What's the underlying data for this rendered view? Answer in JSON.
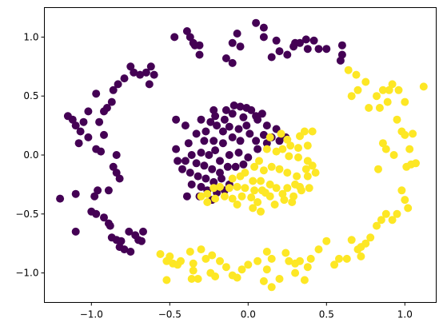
{
  "chart_data": {
    "type": "scatter",
    "title": "",
    "xlabel": "",
    "ylabel": "",
    "xlim": [
      -1.3,
      1.2
    ],
    "ylim": [
      -1.25,
      1.25
    ],
    "grid": false,
    "x_ticks": [
      -1.0,
      -0.5,
      0.0,
      0.5,
      1.0
    ],
    "x_tick_labels": [
      "−1.0",
      "−0.5",
      "0.0",
      "0.5",
      "1.0"
    ],
    "y_ticks": [
      -1.0,
      -0.5,
      0.0,
      0.5,
      1.0
    ],
    "y_tick_labels": [
      "−1.0",
      "−0.5",
      "0.0",
      "0.5",
      "1.0"
    ],
    "series": [
      {
        "color": "#440154",
        "points": [
          [
            0.05,
            1.12
          ],
          [
            0.1,
            1.08
          ],
          [
            -0.07,
            1.03
          ],
          [
            -0.39,
            1.05
          ],
          [
            -0.47,
            1.0
          ],
          [
            -0.37,
            1.0
          ],
          [
            -0.35,
            0.95
          ],
          [
            -0.31,
            0.93
          ],
          [
            -0.05,
            0.92
          ],
          [
            0.1,
            1.0
          ],
          [
            0.18,
            0.97
          ],
          [
            0.3,
            0.95
          ],
          [
            0.37,
            0.98
          ],
          [
            0.42,
            0.97
          ],
          [
            0.45,
            0.9
          ],
          [
            -0.1,
            0.95
          ],
          [
            -0.34,
            0.93
          ],
          [
            -0.31,
            0.85
          ],
          [
            -0.14,
            0.82
          ],
          [
            -0.1,
            0.78
          ],
          [
            0.15,
            0.83
          ],
          [
            0.2,
            0.88
          ],
          [
            0.25,
            0.85
          ],
          [
            0.29,
            0.92
          ],
          [
            0.33,
            0.95
          ],
          [
            0.38,
            0.9
          ],
          [
            0.5,
            0.9
          ],
          [
            0.6,
            0.93
          ],
          [
            0.6,
            0.85
          ],
          [
            0.59,
            0.8
          ],
          [
            -0.62,
            0.75
          ],
          [
            -0.6,
            0.68
          ],
          [
            -0.63,
            0.6
          ],
          [
            -0.65,
            0.7
          ],
          [
            -0.69,
            0.68
          ],
          [
            -0.73,
            0.7
          ],
          [
            -0.75,
            0.75
          ],
          [
            -0.79,
            0.65
          ],
          [
            -0.83,
            0.6
          ],
          [
            -0.86,
            0.55
          ],
          [
            -0.97,
            0.52
          ],
          [
            -0.87,
            0.45
          ],
          [
            -0.9,
            0.4
          ],
          [
            -0.92,
            0.37
          ],
          [
            -0.95,
            0.28
          ],
          [
            -1.02,
            0.37
          ],
          [
            -1.05,
            0.28
          ],
          [
            -1.1,
            0.25
          ],
          [
            -1.12,
            0.3
          ],
          [
            -1.15,
            0.33
          ],
          [
            -1.07,
            0.2
          ],
          [
            -1.08,
            0.1
          ],
          [
            -1.02,
            0.15
          ],
          [
            -0.92,
            0.17
          ],
          [
            -0.94,
            0.03
          ],
          [
            -0.97,
            0.05
          ],
          [
            -0.84,
            0.0
          ],
          [
            -0.86,
            -0.1
          ],
          [
            -0.84,
            -0.15
          ],
          [
            -0.82,
            -0.2
          ],
          [
            -0.89,
            -0.3
          ],
          [
            -0.96,
            -0.3
          ],
          [
            -0.98,
            -0.35
          ],
          [
            -1.1,
            -0.33
          ],
          [
            -1.2,
            -0.37
          ],
          [
            -1.0,
            -0.48
          ],
          [
            -0.97,
            -0.5
          ],
          [
            -0.92,
            -0.53
          ],
          [
            -0.89,
            -0.58
          ],
          [
            -0.88,
            -0.6
          ],
          [
            -0.87,
            -0.7
          ],
          [
            -0.84,
            -0.72
          ],
          [
            -0.82,
            -0.78
          ],
          [
            -0.79,
            -0.8
          ],
          [
            -0.75,
            -0.82
          ],
          [
            -0.72,
            -0.68
          ],
          [
            -0.7,
            -0.72
          ],
          [
            -0.68,
            -0.73
          ],
          [
            -0.67,
            -0.65
          ],
          [
            -0.76,
            -0.65
          ],
          [
            -0.81,
            -0.73
          ],
          [
            -1.1,
            -0.65
          ],
          [
            -0.22,
            0.38
          ],
          [
            -0.14,
            0.38
          ],
          [
            -0.09,
            0.42
          ],
          [
            -0.05,
            0.41
          ],
          [
            -0.01,
            0.4
          ],
          [
            0.02,
            0.38
          ],
          [
            -0.21,
            0.33
          ],
          [
            -0.15,
            0.3
          ],
          [
            -0.1,
            0.35
          ],
          [
            -0.03,
            0.32
          ],
          [
            0.05,
            0.33
          ],
          [
            0.09,
            0.35
          ],
          [
            -0.3,
            0.3
          ],
          [
            -0.27,
            0.2
          ],
          [
            -0.24,
            0.28
          ],
          [
            -0.2,
            0.25
          ],
          [
            -0.16,
            0.2
          ],
          [
            -0.12,
            0.24
          ],
          [
            -0.06,
            0.22
          ],
          [
            -0.01,
            0.25
          ],
          [
            0.06,
            0.3
          ],
          [
            0.12,
            0.25
          ],
          [
            0.18,
            0.22
          ],
          [
            -0.46,
            0.3
          ],
          [
            -0.4,
            0.25
          ],
          [
            -0.33,
            0.18
          ],
          [
            -0.28,
            0.12
          ],
          [
            -0.22,
            0.12
          ],
          [
            -0.16,
            0.1
          ],
          [
            -0.1,
            0.15
          ],
          [
            -0.05,
            0.12
          ],
          [
            0.01,
            0.18
          ],
          [
            0.05,
            0.12
          ],
          [
            0.1,
            0.17
          ],
          [
            0.15,
            0.15
          ],
          [
            0.2,
            0.12
          ],
          [
            0.24,
            0.15
          ],
          [
            -0.38,
            0.1
          ],
          [
            -0.3,
            0.02
          ],
          [
            -0.25,
            0.0
          ],
          [
            -0.21,
            0.04
          ],
          [
            -0.18,
            -0.05
          ],
          [
            -0.12,
            0.0
          ],
          [
            -0.06,
            0.02
          ],
          [
            0.0,
            -0.02
          ],
          [
            0.06,
            0.05
          ],
          [
            0.12,
            0.1
          ],
          [
            -0.46,
            0.05
          ],
          [
            -0.45,
            -0.05
          ],
          [
            -0.4,
            -0.05
          ],
          [
            -0.36,
            0.0
          ],
          [
            -0.33,
            -0.07
          ],
          [
            -0.28,
            -0.09
          ],
          [
            -0.23,
            -0.12
          ],
          [
            -0.18,
            -0.15
          ],
          [
            -0.13,
            -0.1
          ],
          [
            -0.08,
            -0.1
          ],
          [
            -0.03,
            -0.08
          ],
          [
            -0.42,
            -0.12
          ],
          [
            -0.37,
            -0.15
          ],
          [
            -0.32,
            -0.18
          ],
          [
            -0.27,
            -0.2
          ],
          [
            -0.22,
            -0.23
          ],
          [
            -0.17,
            -0.2
          ],
          [
            -0.12,
            -0.25
          ],
          [
            -0.36,
            -0.25
          ],
          [
            -0.3,
            -0.27
          ],
          [
            -0.26,
            -0.3
          ],
          [
            -0.2,
            -0.32
          ],
          [
            -0.15,
            -0.3
          ],
          [
            -0.39,
            -0.35
          ],
          [
            -0.31,
            -0.35
          ],
          [
            -0.23,
            -0.38
          ]
        ]
      },
      {
        "color": "#fde725",
        "points": [
          [
            0.64,
            0.72
          ],
          [
            0.69,
            0.68
          ],
          [
            0.75,
            0.62
          ],
          [
            0.7,
            0.55
          ],
          [
            0.66,
            0.5
          ],
          [
            0.82,
            0.5
          ],
          [
            0.86,
            0.55
          ],
          [
            0.9,
            0.55
          ],
          [
            0.92,
            0.6
          ],
          [
            0.96,
            0.55
          ],
          [
            0.89,
            0.45
          ],
          [
            0.77,
            0.4
          ],
          [
            0.84,
            0.4
          ],
          [
            1.12,
            0.58
          ],
          [
            1.0,
            0.45
          ],
          [
            0.95,
            0.3
          ],
          [
            0.98,
            0.2
          ],
          [
            1.0,
            0.17
          ],
          [
            0.86,
            0.1
          ],
          [
            0.88,
            0.05
          ],
          [
            0.93,
            0.0
          ],
          [
            1.05,
            0.18
          ],
          [
            1.03,
            0.05
          ],
          [
            1.01,
            -0.1
          ],
          [
            1.04,
            -0.08
          ],
          [
            1.07,
            -0.07
          ],
          [
            0.83,
            -0.12
          ],
          [
            0.98,
            -0.3
          ],
          [
            1.0,
            -0.38
          ],
          [
            1.02,
            -0.45
          ],
          [
            0.95,
            -0.5
          ],
          [
            0.88,
            -0.5
          ],
          [
            0.85,
            -0.55
          ],
          [
            0.92,
            -0.55
          ],
          [
            0.82,
            -0.6
          ],
          [
            0.78,
            -0.7
          ],
          [
            0.75,
            -0.75
          ],
          [
            0.72,
            -0.78
          ],
          [
            0.7,
            -0.8
          ],
          [
            0.66,
            -0.72
          ],
          [
            0.72,
            -0.86
          ],
          [
            0.63,
            -0.88
          ],
          [
            0.55,
            -0.93
          ],
          [
            0.58,
            -0.88
          ],
          [
            0.5,
            -0.73
          ],
          [
            0.45,
            -0.8
          ],
          [
            0.4,
            -0.88
          ],
          [
            0.38,
            -0.95
          ],
          [
            0.33,
            -0.9
          ],
          [
            0.3,
            -0.92
          ],
          [
            0.26,
            -0.9
          ],
          [
            0.24,
            -0.83
          ],
          [
            0.15,
            -0.88
          ],
          [
            0.12,
            -0.82
          ],
          [
            0.06,
            -0.9
          ],
          [
            0.0,
            -0.93
          ],
          [
            -0.04,
            -0.97
          ],
          [
            0.12,
            -0.97
          ],
          [
            0.3,
            -1.0
          ],
          [
            0.36,
            -1.06
          ],
          [
            0.2,
            -1.05
          ],
          [
            0.15,
            -1.12
          ],
          [
            0.1,
            -1.07
          ],
          [
            -0.07,
            -1.04
          ],
          [
            -0.1,
            -1.02
          ],
          [
            -0.23,
            -0.85
          ],
          [
            -0.27,
            -0.88
          ],
          [
            -0.35,
            -0.92
          ],
          [
            -0.35,
            -0.98
          ],
          [
            -0.36,
            -1.05
          ],
          [
            -0.52,
            -1.06
          ],
          [
            -0.48,
            -0.92
          ],
          [
            -0.43,
            -0.9
          ],
          [
            -0.45,
            -0.93
          ],
          [
            -0.37,
            -0.82
          ],
          [
            -0.3,
            -0.8
          ],
          [
            -0.24,
            -1.0
          ],
          [
            -0.14,
            -0.95
          ],
          [
            -0.21,
            -1.03
          ],
          [
            -0.32,
            -1.05
          ],
          [
            -0.5,
            -0.86
          ],
          [
            -0.52,
            -0.9
          ],
          [
            -0.56,
            -0.84
          ],
          [
            -0.18,
            -0.9
          ],
          [
            0.14,
            0.15
          ],
          [
            0.21,
            0.18
          ],
          [
            0.25,
            0.13
          ],
          [
            0.33,
            0.16
          ],
          [
            0.36,
            0.2
          ],
          [
            0.41,
            0.2
          ],
          [
            0.38,
            0.08
          ],
          [
            0.32,
            0.06
          ],
          [
            0.27,
            0.08
          ],
          [
            0.22,
            0.05
          ],
          [
            0.18,
            0.03
          ],
          [
            0.12,
            0.05
          ],
          [
            0.26,
            -0.01
          ],
          [
            0.32,
            -0.02
          ],
          [
            0.38,
            -0.05
          ],
          [
            0.41,
            -0.09
          ],
          [
            0.37,
            -0.12
          ],
          [
            0.43,
            -0.15
          ],
          [
            0.38,
            -0.18
          ],
          [
            0.31,
            -0.18
          ],
          [
            0.25,
            -0.15
          ],
          [
            0.2,
            -0.12
          ],
          [
            0.15,
            -0.1
          ],
          [
            0.1,
            -0.13
          ],
          [
            0.07,
            -0.05
          ],
          [
            0.04,
            -0.1
          ],
          [
            -0.02,
            -0.15
          ],
          [
            -0.05,
            -0.18
          ],
          [
            -0.1,
            -0.2
          ],
          [
            0.03,
            -0.22
          ],
          [
            0.08,
            -0.22
          ],
          [
            0.14,
            -0.25
          ],
          [
            0.18,
            -0.28
          ],
          [
            0.25,
            -0.28
          ],
          [
            0.3,
            -0.25
          ],
          [
            0.34,
            -0.3
          ],
          [
            0.39,
            -0.28
          ],
          [
            0.22,
            -0.33
          ],
          [
            0.14,
            -0.35
          ],
          [
            0.09,
            -0.3
          ],
          [
            0.04,
            -0.3
          ],
          [
            -0.02,
            -0.28
          ],
          [
            -0.07,
            -0.27
          ],
          [
            -0.12,
            -0.28
          ],
          [
            -0.18,
            -0.27
          ],
          [
            -0.22,
            -0.28
          ],
          [
            -0.26,
            -0.33
          ],
          [
            -0.21,
            -0.37
          ],
          [
            -0.15,
            -0.35
          ],
          [
            -0.1,
            -0.37
          ],
          [
            -0.04,
            -0.35
          ],
          [
            0.02,
            -0.36
          ],
          [
            0.06,
            -0.4
          ],
          [
            0.11,
            -0.32
          ],
          [
            0.17,
            -0.42
          ],
          [
            0.23,
            -0.38
          ],
          [
            0.29,
            -0.35
          ],
          [
            0.33,
            -0.27
          ],
          [
            0.28,
            -0.4
          ],
          [
            -0.3,
            -0.35
          ],
          [
            -0.26,
            -0.4
          ],
          [
            -0.07,
            -0.42
          ],
          [
            0.03,
            -0.45
          ],
          [
            0.08,
            -0.48
          ]
        ]
      }
    ]
  }
}
